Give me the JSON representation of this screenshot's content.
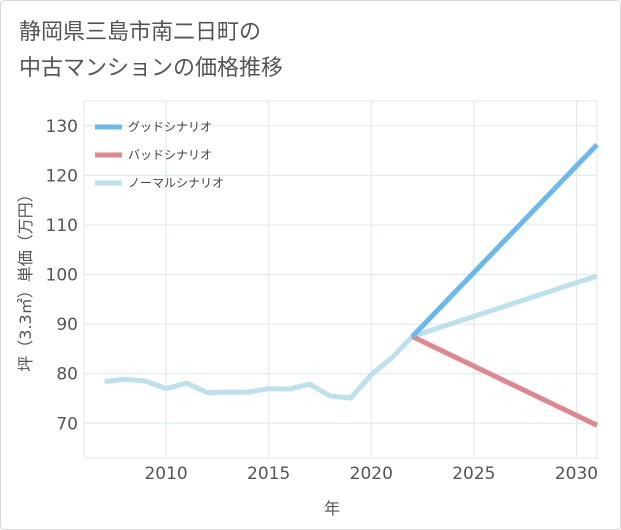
{
  "title": {
    "line1": "静岡県三島市南二日町の",
    "line2": "中古マンションの価格推移"
  },
  "chart_data": {
    "type": "line",
    "title": "静岡県三島市南二日町の中古マンションの価格推移",
    "xlabel": "年",
    "ylabel": "坪（3.3㎡）単価（万円）",
    "xlim": [
      2006.0,
      2031.0
    ],
    "ylim": [
      63,
      135
    ],
    "x_ticks": [
      2010,
      2015,
      2020,
      2025,
      2030
    ],
    "y_ticks": [
      70,
      80,
      90,
      100,
      110,
      120,
      130
    ],
    "grid": true,
    "legend_position": "top-left",
    "series": [
      {
        "name": "グッドシナリオ",
        "color": "#6ab9ee",
        "points": [
          [
            2022,
            87.5
          ],
          [
            2031,
            126.2
          ]
        ]
      },
      {
        "name": "バッドシナリオ",
        "color": "#e0868e",
        "points": [
          [
            2022,
            87.5
          ],
          [
            2031,
            69.6
          ]
        ]
      },
      {
        "name": "ノーマルシナリオ",
        "color": "#bde0ee",
        "points": [
          [
            2007,
            78.4
          ],
          [
            2008,
            78.9
          ],
          [
            2009,
            78.5
          ],
          [
            2010,
            77.0
          ],
          [
            2011,
            78.1
          ],
          [
            2012,
            76.2
          ],
          [
            2013,
            76.3
          ],
          [
            2014,
            76.3
          ],
          [
            2015,
            77.0
          ],
          [
            2016,
            76.9
          ],
          [
            2017,
            77.9
          ],
          [
            2018,
            75.5
          ],
          [
            2019,
            75.1
          ],
          [
            2020,
            79.8
          ],
          [
            2021,
            83.2
          ],
          [
            2022,
            87.5
          ],
          [
            2031,
            99.7
          ]
        ]
      }
    ]
  }
}
